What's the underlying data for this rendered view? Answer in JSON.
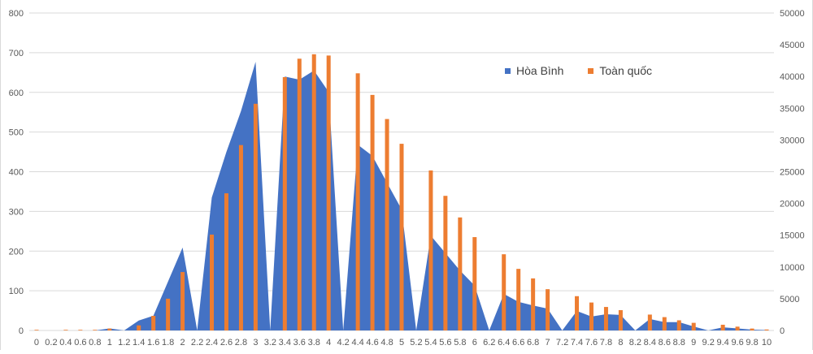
{
  "chart_data": {
    "type": "bar",
    "title": "",
    "xlabel": "",
    "ylabel": "",
    "categories": [
      "0",
      "0.2",
      "0.4",
      "0.6",
      "0.8",
      "1",
      "1.2",
      "1.4",
      "1.6",
      "1.8",
      "2",
      "2.2",
      "2.4",
      "2.6",
      "2.8",
      "3",
      "3.2",
      "3.4",
      "3.6",
      "3.8",
      "4",
      "4.2",
      "4.4",
      "4.6",
      "4.8",
      "5",
      "5.2",
      "5.4",
      "5.6",
      "5.8",
      "6",
      "6.2",
      "6.4",
      "6.6",
      "6.8",
      "7",
      "7.2",
      "7.4",
      "7.6",
      "7.8",
      "8",
      "8.2",
      "8.4",
      "8.6",
      "8.8",
      "9",
      "9.2",
      "9.4",
      "9.6",
      "9.8",
      "10"
    ],
    "ylim_left": [
      0,
      800
    ],
    "yticks_left": [
      "0",
      "100",
      "200",
      "300",
      "400",
      "500",
      "600",
      "700",
      "800"
    ],
    "ylim_right": [
      0,
      50000
    ],
    "yticks_right": [
      "0",
      "5000",
      "10000",
      "15000",
      "20000",
      "25000",
      "30000",
      "35000",
      "40000",
      "45000",
      "50000"
    ],
    "grid": true,
    "legend_position": "top-right",
    "series": [
      {
        "name": "Hòa Bình",
        "type": "area",
        "axis": "left",
        "color": "#4472c4",
        "values": [
          0,
          0,
          0,
          0,
          0,
          5,
          0,
          25,
          37,
          123,
          209,
          0,
          335,
          450,
          553,
          677,
          0,
          640,
          632,
          655,
          601,
          0,
          468,
          440,
          372,
          305,
          0,
          239,
          195,
          151,
          113,
          0,
          92,
          72,
          63,
          55,
          0,
          49,
          35,
          41,
          39,
          0,
          29,
          21,
          21,
          10,
          0,
          8,
          5,
          2,
          1
        ]
      },
      {
        "name": "Toàn quốc",
        "type": "bar",
        "axis": "right",
        "color": "#ed7d31",
        "values": [
          100,
          0,
          100,
          100,
          100,
          300,
          0,
          800,
          2300,
          5000,
          9200,
          0,
          15100,
          21600,
          29200,
          35700,
          0,
          39900,
          42800,
          43500,
          43300,
          0,
          40500,
          37100,
          33300,
          29400,
          0,
          25200,
          21200,
          17800,
          14700,
          0,
          12000,
          9700,
          8200,
          6500,
          0,
          5400,
          4400,
          3700,
          3200,
          0,
          2500,
          2100,
          1600,
          1200,
          0,
          900,
          600,
          300,
          150
        ]
      }
    ]
  }
}
